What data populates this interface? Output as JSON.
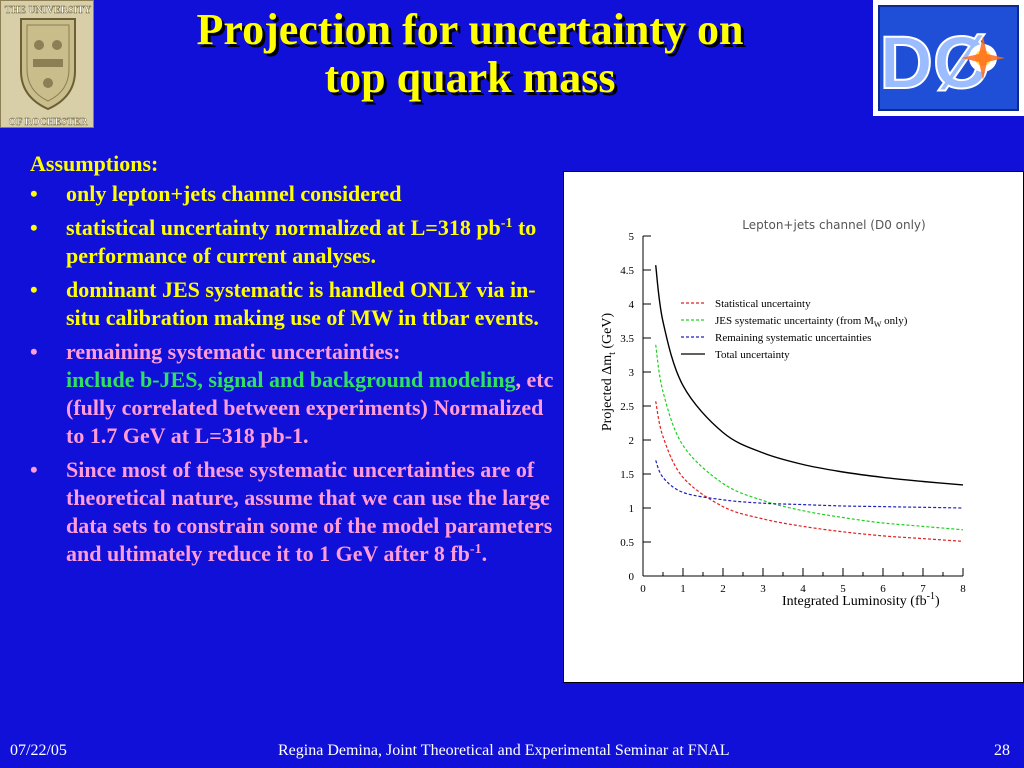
{
  "slide": {
    "title_line1": "Projection for uncertainty on",
    "title_line2": "top quark mass",
    "assumptions_heading": "Assumptions:",
    "bullet_char": "•",
    "bullets": [
      {
        "text": "only lepton+jets channel considered"
      },
      {
        "pre": "statistical uncertainty normalized at L=318 pb",
        "sup": "-1",
        "post": " to performance of current analyses."
      },
      {
        "text": "dominant JES systematic is handled ONLY via in-situ calibration making use of MW in ttbar events."
      },
      {
        "line1": "remaining systematic uncertainties:",
        "green": "include b-JES, signal and background modeling",
        "rest": ", etc (fully correlated between experiments) Normalized to 1.7 GeV at L=318 pb-1."
      },
      {
        "pre": "Since most of these systematic uncertainties are of theoretical nature, assume that we can use the large data sets to constrain some of the model parameters and ultimately reduce it to 1 GeV after 8 fb",
        "sup": "-1",
        "post": "."
      }
    ],
    "colors": {
      "background": "#1010d8",
      "title": "#ffff00",
      "text_yellow": "#ffff00",
      "text_pink": "#ff9cd8",
      "text_green": "#30e060"
    }
  },
  "logos": {
    "left": {
      "icon": "university-of-rochester-seal",
      "lines": [
        "THE UNIVERSITY",
        "OF ROCHESTER"
      ]
    },
    "right": {
      "icon": "d0-experiment-logo",
      "text": "DØ"
    }
  },
  "footer": {
    "date": "07/22/05",
    "credit": "Regina Demina, Joint Theoretical and Experimental Seminar at FNAL",
    "page": "28"
  },
  "chart_data": {
    "type": "line",
    "title": "Lepton+jets channel (D0 only)",
    "xlabel_pre": "Integrated Luminosity (fb",
    "xlabel_sup": "-1",
    "xlabel_post": ")",
    "ylabel_pre": "Projected Δm",
    "ylabel_sub": "t",
    "ylabel_post": " (GeV)",
    "xlim": [
      0,
      8
    ],
    "ylim": [
      0,
      5
    ],
    "xticks": [
      "0",
      "1",
      "2",
      "3",
      "4",
      "5",
      "6",
      "7",
      "8"
    ],
    "yticks": [
      "0",
      "0.5",
      "1",
      "1.5",
      "2",
      "2.5",
      "3",
      "3.5",
      "4",
      "4.5",
      "5"
    ],
    "legend_position": "top-right",
    "series": [
      {
        "name": "Statistical uncertainty",
        "color": "#e02020",
        "style": "dashed",
        "x": [
          0.318,
          0.5,
          1,
          2,
          3,
          4,
          5,
          6,
          7,
          8
        ],
        "y": [
          2.57,
          2.05,
          1.45,
          1.02,
          0.84,
          0.73,
          0.65,
          0.59,
          0.55,
          0.51
        ]
      },
      {
        "name": "JES systematic uncertainty (from M",
        "name_sub": "W",
        "name_post": " only)",
        "color": "#20d020",
        "style": "dashed",
        "x": [
          0.318,
          0.5,
          1,
          2,
          3,
          4,
          5,
          6,
          7,
          8
        ],
        "y": [
          3.4,
          2.71,
          1.92,
          1.36,
          1.11,
          0.96,
          0.86,
          0.78,
          0.73,
          0.68
        ]
      },
      {
        "name": "Remaining systematic uncertainties",
        "color": "#2020c0",
        "style": "dashed",
        "x": [
          0.318,
          0.5,
          1,
          2,
          3,
          4,
          5,
          6,
          7,
          8
        ],
        "y": [
          1.7,
          1.45,
          1.23,
          1.12,
          1.07,
          1.05,
          1.03,
          1.02,
          1.01,
          1.0
        ]
      },
      {
        "name": "Total uncertainty",
        "color": "#000000",
        "style": "solid",
        "x": [
          0.318,
          0.5,
          1,
          2,
          3,
          4,
          5,
          6,
          7,
          8
        ],
        "y": [
          4.57,
          3.74,
          2.8,
          2.11,
          1.81,
          1.64,
          1.53,
          1.45,
          1.39,
          1.34
        ]
      }
    ]
  }
}
